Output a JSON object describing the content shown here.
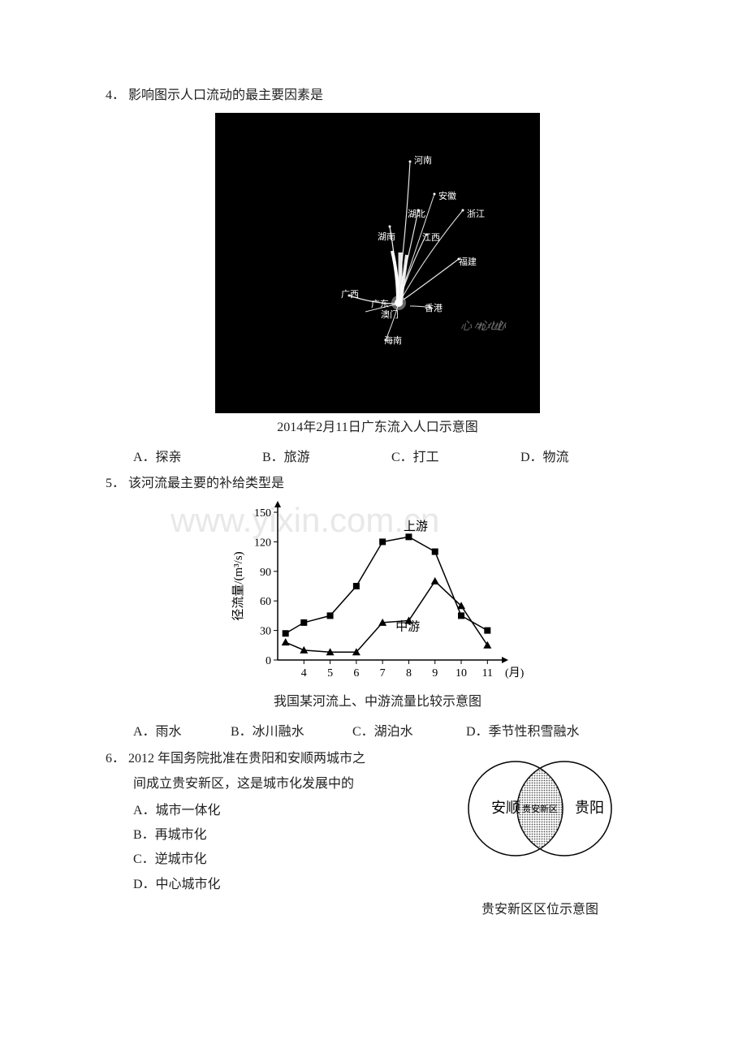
{
  "watermark": "www.yixin.com.cn",
  "q4": {
    "number": "4．",
    "text": "影响图示人口流动的最主要因素是",
    "map_caption": "2014年2月11日广东流入人口示意图",
    "map_labels": {
      "henan": "河南",
      "anhui": "安徽",
      "hubei": "湖北",
      "zhejiang": "浙江",
      "hunan": "湖南",
      "jiangxi": "江西",
      "fujian": "福建",
      "guangxi": "广西",
      "guangdong": "广东",
      "macau": "澳门",
      "hongkong": "香港",
      "hainan": "海南"
    },
    "options": {
      "A": "A．探亲",
      "B": "B．旅游",
      "C": "C．打工",
      "D": "D．物流"
    }
  },
  "q5": {
    "number": "5．",
    "text": "该河流最主要的补给类型是",
    "chart": {
      "type": "line",
      "ylabel": "径流量/(m³/s)",
      "ylim": [
        0,
        150
      ],
      "ytick_step": 30,
      "xlabel_suffix": "(月)",
      "xticks": [
        4,
        5,
        6,
        7,
        8,
        9,
        10,
        11
      ],
      "series": [
        {
          "name": "上游",
          "label": "上游",
          "marker": "square",
          "color": "#000000",
          "points": [
            [
              3.3,
              27
            ],
            [
              4,
              38
            ],
            [
              5,
              45
            ],
            [
              6,
              75
            ],
            [
              7,
              120
            ],
            [
              8,
              125
            ],
            [
              9,
              110
            ],
            [
              10,
              45
            ],
            [
              11,
              30
            ]
          ]
        },
        {
          "name": "中游",
          "label": "中游",
          "marker": "triangle",
          "color": "#000000",
          "points": [
            [
              3.3,
              18
            ],
            [
              4,
              10
            ],
            [
              5,
              8
            ],
            [
              6,
              8
            ],
            [
              7,
              38
            ],
            [
              8,
              40
            ],
            [
              9,
              80
            ],
            [
              10,
              55
            ],
            [
              11,
              15
            ]
          ]
        }
      ],
      "caption": "我国某河流上、中游流量比较示意图",
      "line_width": 1.5,
      "background_color": "#ffffff"
    },
    "options": {
      "A": "A．雨水",
      "B": "B．冰川融水",
      "C": "C．湖泊水",
      "D": "D．季节性积雪融水"
    }
  },
  "q6": {
    "number": "6．",
    "line1": "2012 年国务院批准在贵阳和安顺两城市之",
    "line2": "间成立贵安新区，这是城市化发展中的",
    "options": {
      "A": "A．城市一体化",
      "B": "B．再城市化",
      "C": "C．逆城市化",
      "D": "D．中心城市化"
    },
    "venn": {
      "left_label": "安顺",
      "right_label": "贵阳",
      "center_label": "贵安新区",
      "caption": "贵安新区区位示意图",
      "stroke": "#000000",
      "fill_pattern": "#777777",
      "background": "#ffffff"
    }
  }
}
